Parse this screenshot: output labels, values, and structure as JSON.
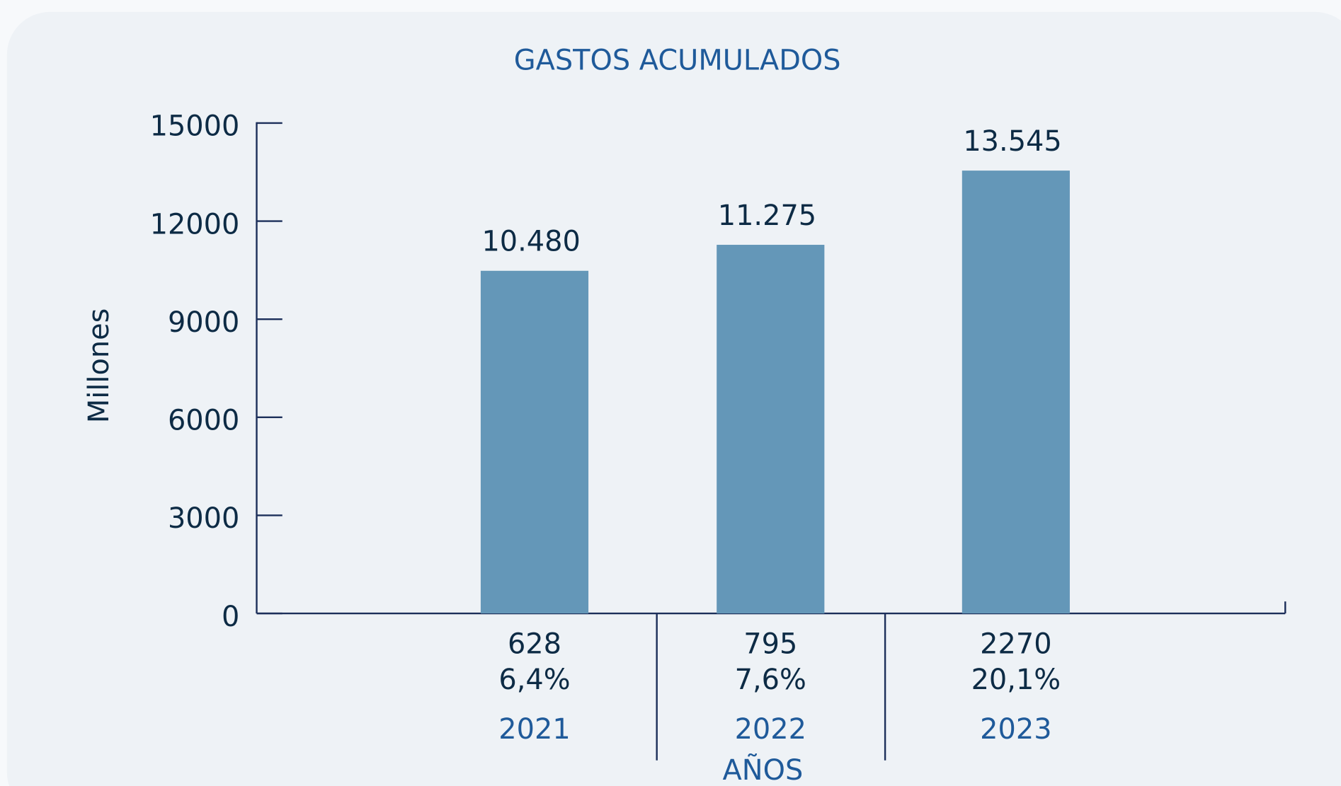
{
  "chart_data": {
    "type": "bar",
    "title": "GASTOS ACUMULADOS",
    "y_label": "Millones",
    "x_label": "AÑOS",
    "categories": [
      "2021",
      "2022",
      "2023"
    ],
    "values": [
      10480,
      11275,
      13545
    ],
    "value_labels": [
      "10.480",
      "11.275",
      "13.545"
    ],
    "increase": [
      628,
      795,
      2270
    ],
    "increase_pct": [
      "6,4%",
      "7,6%",
      "20,1%"
    ],
    "color": "#6497b8",
    "ylim": [
      0,
      15000
    ],
    "yticks": [
      0,
      3000,
      6000,
      9000,
      12000,
      15000
    ]
  }
}
